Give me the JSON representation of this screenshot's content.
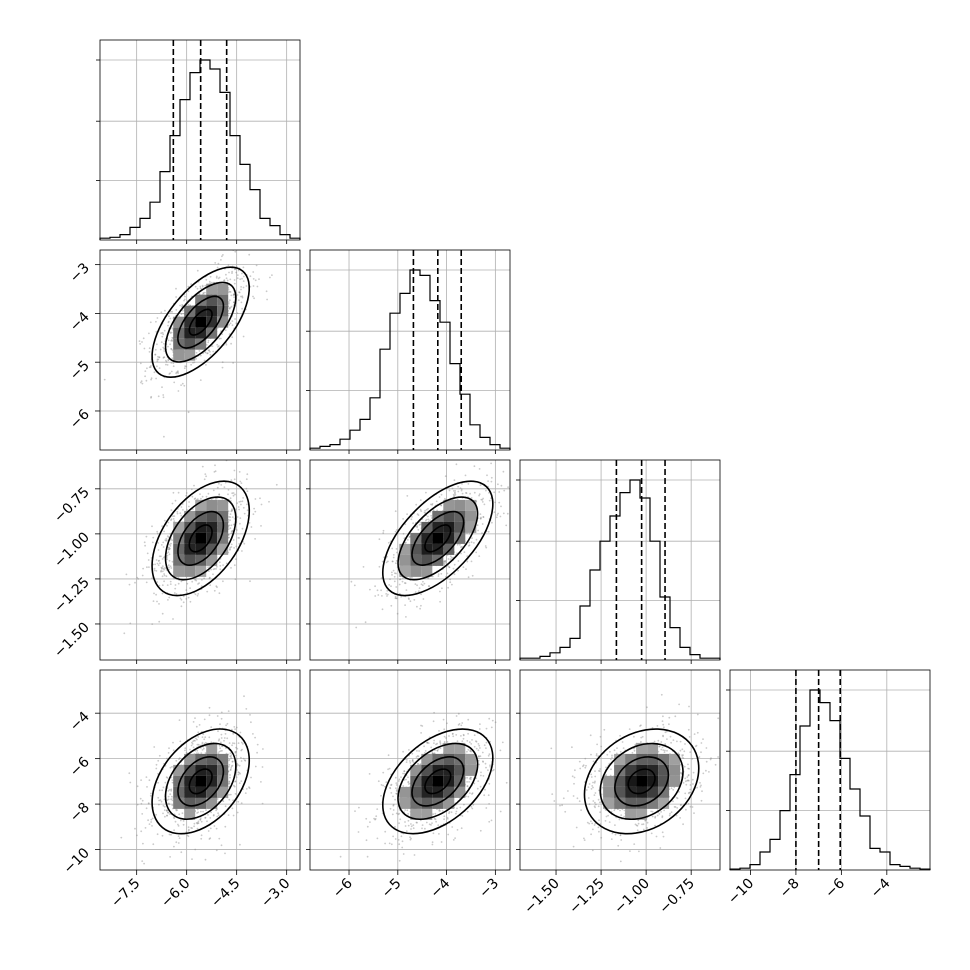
{
  "chart_data": {
    "type": "corner",
    "grid": true,
    "legend": "none",
    "parameters": [
      {
        "range": [
          -8.6,
          -2.6
        ],
        "ticks": [
          -7.5,
          -6.0,
          -4.5,
          -3.0
        ],
        "tick_labels": [
          "−7.5",
          "−6.0",
          "−4.5",
          "−3.0"
        ],
        "quantiles": [
          -6.4,
          -5.58,
          -4.8
        ],
        "hist_bins": [
          0.01,
          0.015,
          0.03,
          0.07,
          0.12,
          0.21,
          0.38,
          0.58,
          0.78,
          0.93,
          1.0,
          0.95,
          0.82,
          0.58,
          0.42,
          0.28,
          0.12,
          0.08,
          0.03,
          0.01
        ]
      },
      {
        "range": [
          -6.8,
          -2.7
        ],
        "ticks": [
          -6,
          -5,
          -4,
          -3
        ],
        "tick_labels": [
          "−6",
          "−5",
          "−4",
          "−3"
        ],
        "quantiles": [
          -4.68,
          -4.18,
          -3.7
        ],
        "hist_bins": [
          0.01,
          0.02,
          0.03,
          0.06,
          0.11,
          0.17,
          0.29,
          0.56,
          0.76,
          0.87,
          1.0,
          0.97,
          0.83,
          0.71,
          0.48,
          0.31,
          0.14,
          0.07,
          0.03,
          0.01
        ]
      },
      {
        "range": [
          -1.7,
          -0.59
        ],
        "ticks": [
          -1.5,
          -1.25,
          -1.0,
          -0.75
        ],
        "tick_labels": [
          "−1.50",
          "−1.25",
          "−1.00",
          "−0.75"
        ],
        "quantiles": [
          -1.165,
          -1.025,
          -0.895
        ],
        "hist_bins": [
          0.01,
          0.01,
          0.02,
          0.04,
          0.07,
          0.12,
          0.3,
          0.5,
          0.66,
          0.8,
          0.93,
          1.0,
          0.9,
          0.66,
          0.35,
          0.18,
          0.07,
          0.03,
          0.01,
          0.01
        ]
      },
      {
        "range": [
          -10.9,
          -2.1
        ],
        "ticks": [
          -10,
          -8,
          -6,
          -4
        ],
        "tick_labels": [
          "−10",
          "−8",
          "−6",
          "−4"
        ],
        "quantiles": [
          -8.0,
          -7.0,
          -6.05
        ],
        "hist_bins": [
          0.005,
          0.01,
          0.03,
          0.1,
          0.17,
          0.33,
          0.53,
          0.8,
          1.0,
          0.93,
          0.83,
          0.62,
          0.45,
          0.3,
          0.12,
          0.1,
          0.03,
          0.02,
          0.01,
          0.005
        ]
      }
    ],
    "pairs": [
      {
        "x": 0,
        "y": 1,
        "center": [
          -5.58,
          -4.18
        ],
        "sigma": [
          0.62,
          0.48
        ],
        "rho": 0.62
      },
      {
        "x": 0,
        "y": 2,
        "center": [
          -5.58,
          -1.025
        ],
        "sigma": [
          0.62,
          0.135
        ],
        "rho": 0.48
      },
      {
        "x": 1,
        "y": 2,
        "center": [
          -4.18,
          -1.025
        ],
        "sigma": [
          0.48,
          0.135
        ],
        "rho": 0.6
      },
      {
        "x": 0,
        "y": 3,
        "center": [
          -5.58,
          -7.0
        ],
        "sigma": [
          0.62,
          0.98
        ],
        "rho": 0.4
      },
      {
        "x": 1,
        "y": 3,
        "center": [
          -4.18,
          -7.0
        ],
        "sigma": [
          0.48,
          0.98
        ],
        "rho": 0.45
      },
      {
        "x": 2,
        "y": 3,
        "center": [
          -1.025,
          -7.0
        ],
        "sigma": [
          0.135,
          0.98
        ],
        "rho": 0.25
      }
    ]
  }
}
